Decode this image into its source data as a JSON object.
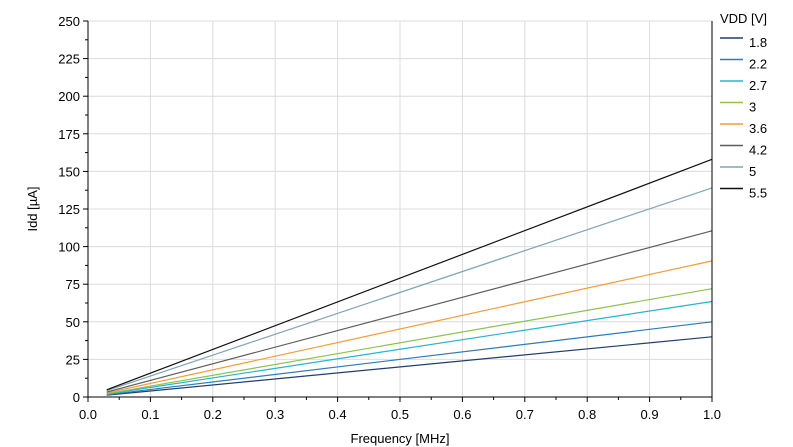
{
  "chart_data": {
    "type": "line",
    "title": "",
    "xlabel": "Frequency [MHz]",
    "ylabel": "Idd [µA]",
    "xlim": [
      0,
      1
    ],
    "ylim": [
      0,
      250
    ],
    "xticks": [
      "0.0",
      "0.1",
      "0.2",
      "0.3",
      "0.4",
      "0.5",
      "0.6",
      "0.7",
      "0.8",
      "0.9",
      "1.0"
    ],
    "yticks": [
      "0",
      "25",
      "50",
      "75",
      "100",
      "125",
      "150",
      "175",
      "200",
      "225",
      "250"
    ],
    "grid": true,
    "legend_title": "VDD [V]",
    "legend_position": "right",
    "series": [
      {
        "name": "1.8",
        "color": "#1f3e6e",
        "x": [
          0.03,
          1.0
        ],
        "y": [
          1.2,
          40
        ]
      },
      {
        "name": "2.2",
        "color": "#2c7bb6",
        "x": [
          0.03,
          1.0
        ],
        "y": [
          1.5,
          50
        ]
      },
      {
        "name": "2.7",
        "color": "#25b4d0",
        "x": [
          0.03,
          1.0
        ],
        "y": [
          1.9,
          63.5
        ]
      },
      {
        "name": "3",
        "color": "#8bc34a",
        "x": [
          0.03,
          1.0
        ],
        "y": [
          2.2,
          72
        ]
      },
      {
        "name": "3.6",
        "color": "#f39c34",
        "x": [
          0.03,
          1.0
        ],
        "y": [
          2.7,
          90.5
        ]
      },
      {
        "name": "4.2",
        "color": "#5e5e5e",
        "x": [
          0.03,
          1.0
        ],
        "y": [
          3.3,
          110.5
        ]
      },
      {
        "name": "5",
        "color": "#7ea5b3",
        "x": [
          0.03,
          1.0
        ],
        "y": [
          4.2,
          139
        ]
      },
      {
        "name": "5.5",
        "color": "#111111",
        "x": [
          0.03,
          1.0
        ],
        "y": [
          4.8,
          158
        ]
      }
    ]
  }
}
